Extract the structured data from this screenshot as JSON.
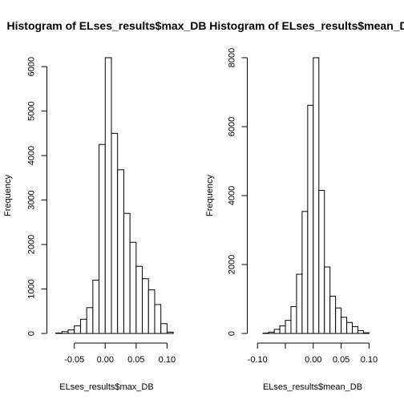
{
  "chart_data": [
    {
      "type": "bar",
      "title": "Histogram of ELses_results$max_DB",
      "xlabel": "ELses_results$max_DB",
      "ylabel": "Frequency",
      "bin_width": 0.01,
      "bin_start": -0.08,
      "values": [
        10,
        40,
        80,
        170,
        320,
        580,
        1200,
        4250,
        6200,
        4500,
        3680,
        2700,
        2050,
        1510,
        1230,
        980,
        650,
        220,
        30
      ],
      "xlim": [
        -0.08,
        0.11
      ],
      "ylim": [
        0,
        6200
      ],
      "xticks": [
        -0.05,
        0.0,
        0.05,
        0.1
      ],
      "xtick_labels": [
        "-0.05",
        "0.00",
        "0.05",
        "0.10"
      ],
      "yticks": [
        0,
        1000,
        2000,
        3000,
        4000,
        5000,
        6000
      ],
      "ytick_labels": [
        "0",
        "1000",
        "2000",
        "3000",
        "4000",
        "5000",
        "6000"
      ],
      "grid": false
    },
    {
      "type": "bar",
      "title": "Histogram of ELses_results$mean_DB",
      "xlabel": "ELses_results$mean_DB",
      "ylabel": "Frequency",
      "bin_width": 0.01,
      "bin_start": -0.09,
      "values": [
        10,
        40,
        120,
        220,
        380,
        780,
        1720,
        3540,
        6620,
        8000,
        4150,
        1930,
        1080,
        740,
        470,
        320,
        200,
        80,
        20
      ],
      "xlim": [
        -0.09,
        0.1
      ],
      "ylim": [
        0,
        8000
      ],
      "xticks": [
        -0.1,
        -0.05,
        0.0,
        0.05,
        0.1
      ],
      "xtick_labels": [
        "-0.10",
        "",
        "0.00",
        "0.05",
        "0.10"
      ],
      "yticks": [
        0,
        2000,
        4000,
        6000,
        8000
      ],
      "ytick_labels": [
        "0",
        "2000",
        "4000",
        "6000",
        "8000"
      ],
      "grid": false
    }
  ]
}
